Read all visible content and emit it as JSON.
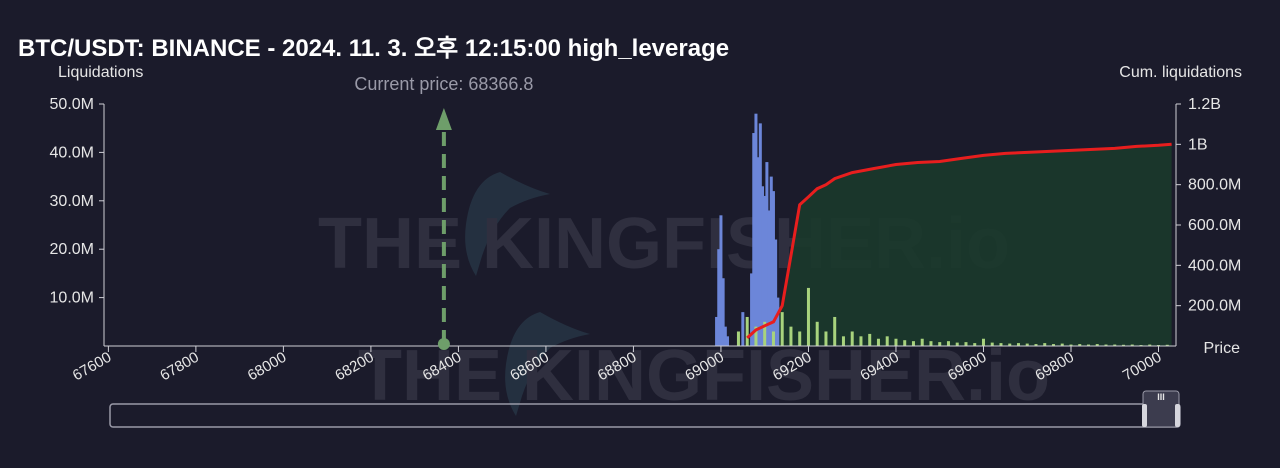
{
  "chart_data": {
    "type": "bar",
    "title": "BTC/USDT: BINANCE - 2024. 11. 3. 오후 12:15:00 high_leverage",
    "ylabel_left": "Liquidations",
    "ylabel_right": "Cum. liquidations",
    "xlabel": "Price",
    "current_price_label": "Current price: 68366.8",
    "current_price": 68366.8,
    "watermark": "THE KINGFISHER.io",
    "xlim": [
      67590,
      70040
    ],
    "ylim_left": [
      0,
      50000000
    ],
    "ylim_right": [
      0,
      1200000000
    ],
    "x_ticks": [
      67600,
      67800,
      68000,
      68200,
      68400,
      68600,
      68800,
      69000,
      69200,
      69400,
      69600,
      69800,
      70000
    ],
    "x_tick_labels": [
      "67600",
      "67800",
      "68000",
      "68200",
      "68400",
      "68600",
      "68800",
      "69000",
      "69200",
      "69400",
      "69600",
      "69800",
      "70000"
    ],
    "y_left_ticks": [
      10000000,
      20000000,
      30000000,
      40000000,
      50000000
    ],
    "y_left_tick_labels": [
      "10.0M",
      "20.0M",
      "30.0M",
      "40.0M",
      "50.0M"
    ],
    "y_right_ticks": [
      200000000,
      400000000,
      600000000,
      800000000,
      1000000000,
      1200000000
    ],
    "y_right_tick_labels": [
      "200.0M",
      "400.0M",
      "600.0M",
      "800.0M",
      "1B",
      "1.2B"
    ],
    "colors": {
      "background": "#1b1b2b",
      "short_bars": "#6c86d9",
      "long_bars": "#a8d37d",
      "cumulative_line": "#e81e1e",
      "cumulative_fill": "#1b3a2b",
      "current_price": "#6e9e6a"
    },
    "series": [
      {
        "kind": "bar",
        "color": "#6c86d9",
        "x": [
          68990,
          68995,
          69000,
          69005,
          69010,
          69015,
          69050,
          69070,
          69075,
          69080,
          69085,
          69090,
          69095,
          69100,
          69105,
          69110,
          69115,
          69120,
          69125,
          69130
        ],
        "values": [
          6000000,
          20000000,
          27000000,
          14000000,
          4000000,
          2000000,
          7000000,
          15000000,
          44000000,
          48000000,
          39000000,
          46000000,
          33000000,
          31000000,
          38000000,
          28000000,
          35000000,
          32000000,
          22000000,
          10000000
        ]
      },
      {
        "kind": "bar",
        "color": "#a8d37d",
        "x": [
          69040,
          69060,
          69080,
          69100,
          69120,
          69140,
          69160,
          69180,
          69200,
          69220,
          69240,
          69260,
          69280,
          69300,
          69320,
          69340,
          69360,
          69380,
          69400,
          69420,
          69440,
          69460,
          69480,
          69500,
          69520,
          69540,
          69560,
          69580,
          69600,
          69620,
          69640,
          69660,
          69680,
          69700,
          69720,
          69740,
          69760,
          69780,
          69800,
          69820,
          69840,
          69860,
          69880,
          69900,
          69920,
          69940,
          69960,
          69980,
          70000,
          70020
        ],
        "values": [
          3000000,
          6000000,
          4000000,
          5000000,
          3000000,
          7000000,
          4000000,
          3000000,
          12000000,
          5000000,
          3000000,
          6000000,
          2000000,
          3000000,
          2000000,
          2500000,
          1500000,
          2000000,
          1500000,
          1200000,
          1000000,
          1500000,
          1000000,
          800000,
          1000000,
          700000,
          800000,
          600000,
          1500000,
          700000,
          600000,
          500000,
          600000,
          500000,
          400000,
          600000,
          400000,
          500000,
          300000,
          400000,
          300000,
          400000,
          300000,
          300000,
          250000,
          300000,
          200000,
          300000,
          200000,
          250000
        ]
      },
      {
        "kind": "line",
        "color": "#e81e1e",
        "x": [
          69060,
          69080,
          69100,
          69120,
          69140,
          69160,
          69180,
          69200,
          69220,
          69240,
          69260,
          69300,
          69350,
          69400,
          69450,
          69500,
          69550,
          69600,
          69650,
          69700,
          69750,
          69800,
          69850,
          69900,
          69950,
          70000,
          70030
        ],
        "values": [
          40000000,
          80000000,
          100000000,
          120000000,
          200000000,
          450000000,
          700000000,
          740000000,
          780000000,
          800000000,
          830000000,
          860000000,
          880000000,
          900000000,
          910000000,
          915000000,
          930000000,
          945000000,
          955000000,
          960000000,
          965000000,
          970000000,
          975000000,
          980000000,
          990000000,
          995000000,
          1000000000
        ]
      }
    ]
  },
  "range_slider": {
    "handle_label": "III"
  }
}
